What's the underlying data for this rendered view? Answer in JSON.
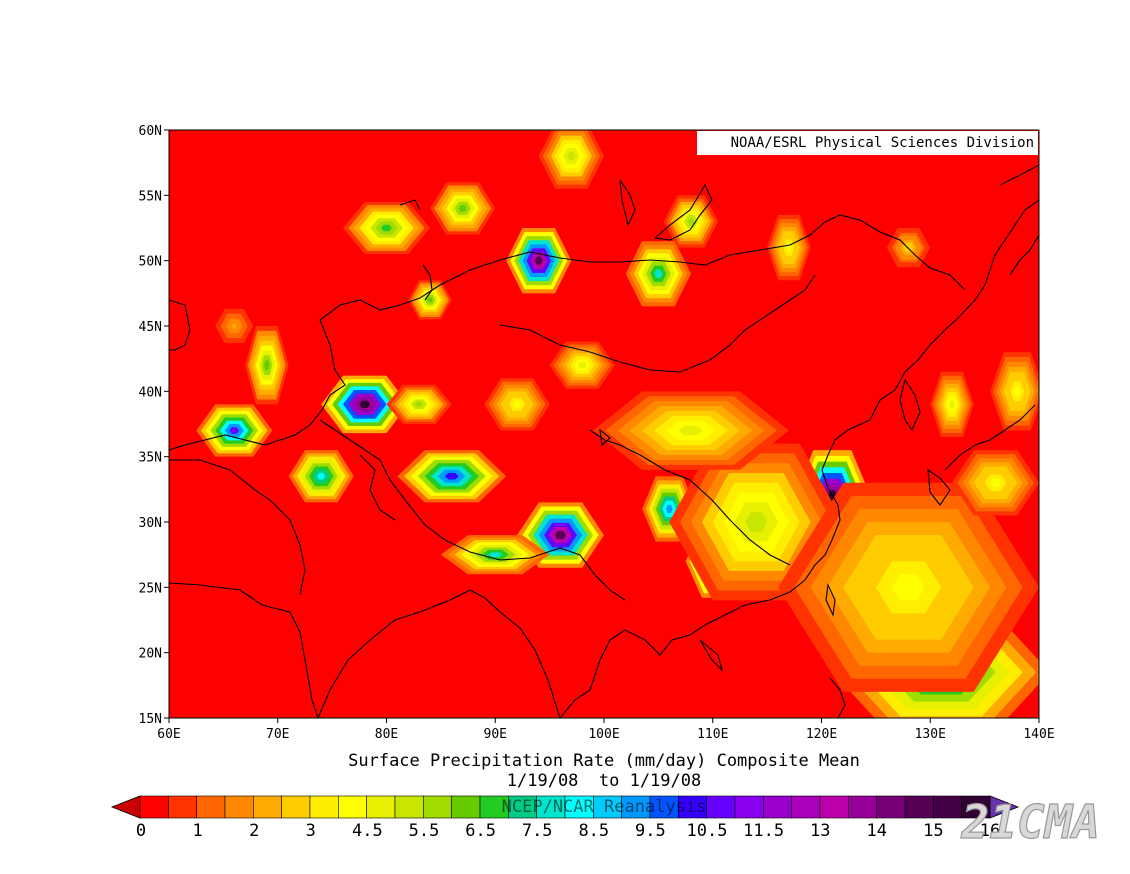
{
  "map": {
    "credit": "NOAA/ESRL Physical Sciences Division",
    "lat_ticks": [
      "60N",
      "55N",
      "50N",
      "45N",
      "40N",
      "35N",
      "30N",
      "25N",
      "20N",
      "15N"
    ],
    "lon_ticks": [
      "60E",
      "70E",
      "80E",
      "90E",
      "100E",
      "110E",
      "120E",
      "130E",
      "140E"
    ],
    "lat_values": [
      60,
      55,
      50,
      45,
      40,
      35,
      30,
      25,
      20,
      15
    ],
    "lon_values": [
      60,
      70,
      80,
      90,
      100,
      110,
      120,
      130,
      140
    ],
    "extent": {
      "lon_min": 60,
      "lon_max": 140,
      "lat_min": 15,
      "lat_max": 60
    },
    "title_line1": "Surface Precipitation Rate (mm/day) Composite Mean",
    "title_line2": "1/19/08  to 1/19/08",
    "title_line3": "NCEP/NCAR Reanalysis",
    "background_color": "#ff0000",
    "blobs": [
      {
        "lon": 66,
        "lat": 37,
        "rx": 3.5,
        "ry": 2,
        "peak": 11
      },
      {
        "lon": 69,
        "lat": 42,
        "rx": 2,
        "ry": 3,
        "peak": 6
      },
      {
        "lon": 78,
        "lat": 39,
        "rx": 4,
        "ry": 2.2,
        "peak": 16
      },
      {
        "lon": 83,
        "lat": 39,
        "rx": 3,
        "ry": 1.5,
        "peak": 5.5
      },
      {
        "lon": 74,
        "lat": 33.5,
        "rx": 3,
        "ry": 2,
        "peak": 8.5
      },
      {
        "lon": 86,
        "lat": 33.5,
        "rx": 5,
        "ry": 2,
        "peak": 10.5
      },
      {
        "lon": 96,
        "lat": 29,
        "rx": 4,
        "ry": 2.5,
        "peak": 15
      },
      {
        "lon": 90,
        "lat": 27.5,
        "rx": 5,
        "ry": 1.5,
        "peak": 7.5
      },
      {
        "lon": 80,
        "lat": 52.5,
        "rx": 4,
        "ry": 2,
        "peak": 6.5
      },
      {
        "lon": 87,
        "lat": 54,
        "rx": 3,
        "ry": 2,
        "peak": 6
      },
      {
        "lon": 94,
        "lat": 50,
        "rx": 3,
        "ry": 2.5,
        "peak": 15
      },
      {
        "lon": 97,
        "lat": 58,
        "rx": 3,
        "ry": 2.5,
        "peak": 5
      },
      {
        "lon": 105,
        "lat": 49,
        "rx": 3,
        "ry": 2.5,
        "peak": 7.5
      },
      {
        "lon": 108,
        "lat": 53,
        "rx": 2.5,
        "ry": 2,
        "peak": 5.5
      },
      {
        "lon": 84,
        "lat": 47,
        "rx": 2,
        "ry": 1.5,
        "peak": 6
      },
      {
        "lon": 92,
        "lat": 39,
        "rx": 3,
        "ry": 2,
        "peak": 4
      },
      {
        "lon": 98,
        "lat": 42,
        "rx": 3,
        "ry": 1.8,
        "peak": 4.5
      },
      {
        "lon": 106,
        "lat": 31,
        "rx": 2.5,
        "ry": 2.5,
        "peak": 9.5
      },
      {
        "lon": 110.5,
        "lat": 27,
        "rx": 3,
        "ry": 2.8,
        "peak": 15
      },
      {
        "lon": 116,
        "lat": 32,
        "rx": 3,
        "ry": 3,
        "peak": 7.5
      },
      {
        "lon": 121,
        "lat": 32,
        "rx": 3.5,
        "ry": 3.5,
        "peak": 16
      },
      {
        "lon": 114,
        "lat": 30,
        "rx": 8,
        "ry": 6,
        "peak": 5
      },
      {
        "lon": 108,
        "lat": 37,
        "rx": 9,
        "ry": 3,
        "peak": 4.5
      },
      {
        "lon": 132,
        "lat": 20,
        "rx": 7,
        "ry": 2.5,
        "peak": 16
      },
      {
        "lon": 133,
        "lat": 16.5,
        "rx": 5,
        "ry": 2.5,
        "peak": 15
      },
      {
        "lon": 131,
        "lat": 18.5,
        "rx": 10,
        "ry": 4.5,
        "peak": 8.5
      },
      {
        "lon": 128,
        "lat": 25,
        "rx": 12,
        "ry": 8,
        "peak": 4
      },
      {
        "lon": 117,
        "lat": 51,
        "rx": 2,
        "ry": 2.5,
        "peak": 4
      },
      {
        "lon": 132,
        "lat": 39,
        "rx": 2,
        "ry": 2.5,
        "peak": 4.5
      },
      {
        "lon": 138,
        "lat": 40,
        "rx": 2.5,
        "ry": 3,
        "peak": 4
      },
      {
        "lon": 136,
        "lat": 33,
        "rx": 4,
        "ry": 2.5,
        "peak": 4
      },
      {
        "lon": 128,
        "lat": 51,
        "rx": 2,
        "ry": 1.5,
        "peak": 3
      },
      {
        "lon": 66,
        "lat": 45,
        "rx": 2,
        "ry": 1.5,
        "peak": 2
      }
    ]
  },
  "colorbar": {
    "labels": [
      "0",
      "1",
      "2",
      "3",
      "4.5",
      "5.5",
      "6.5",
      "7.5",
      "8.5",
      "9.5",
      "10.5",
      "11.5",
      "13",
      "14",
      "15",
      "16"
    ],
    "colors": [
      "#ff0000",
      "#ff3300",
      "#ff6600",
      "#ff8800",
      "#ffaa00",
      "#ffcc00",
      "#ffee00",
      "#ffff00",
      "#e6f000",
      "#c8e600",
      "#a0dc00",
      "#66cc00",
      "#22cc22",
      "#00cc88",
      "#00e6cc",
      "#00ffff",
      "#00ccff",
      "#0099ff",
      "#0055ff",
      "#3300ff",
      "#6600ff",
      "#8800ee",
      "#9900cc",
      "#aa00bb",
      "#bb00aa",
      "#990099",
      "#770077",
      "#550055",
      "#440044",
      "#330033"
    ],
    "left_color": "#cc0000",
    "right_color": "#6633aa"
  },
  "watermark": "21CMA"
}
